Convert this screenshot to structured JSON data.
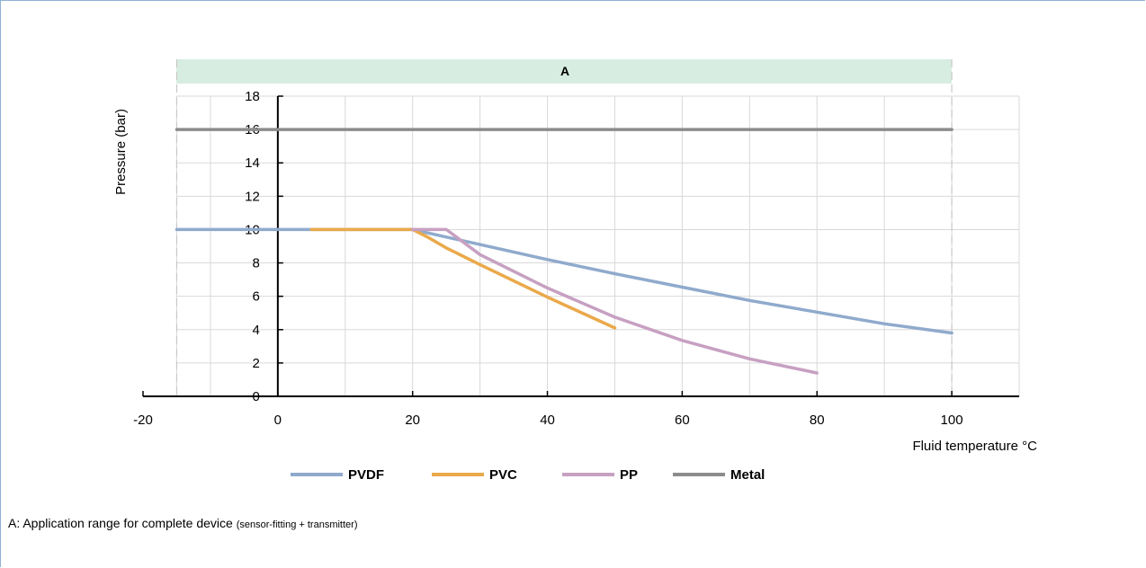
{
  "chart_data": {
    "type": "line",
    "band_label": "A",
    "xlabel": "Fluid temperature °C",
    "ylabel": "Pressure (bar)",
    "xlim": [
      -20,
      110
    ],
    "ylim": [
      0,
      18
    ],
    "x_ticks": [
      -20,
      0,
      20,
      40,
      60,
      80,
      100
    ],
    "y_ticks": [
      0,
      2,
      4,
      6,
      8,
      10,
      12,
      14,
      16,
      18
    ],
    "x_gridlines": [
      -15,
      -10,
      0,
      10,
      20,
      30,
      40,
      50,
      60,
      70,
      80,
      90,
      100,
      110
    ],
    "band_range": [
      -15,
      100
    ],
    "grid": true,
    "legend_position": "bottom",
    "series": [
      {
        "name": "PVDF",
        "color": "#8faacc",
        "points": [
          [
            -15,
            10
          ],
          [
            20,
            10
          ],
          [
            30,
            9.1
          ],
          [
            40,
            8.2
          ],
          [
            50,
            7.35
          ],
          [
            60,
            6.55
          ],
          [
            70,
            5.75
          ],
          [
            80,
            5.05
          ],
          [
            90,
            4.35
          ],
          [
            100,
            3.8
          ]
        ]
      },
      {
        "name": "PVC",
        "color": "#eaa94a",
        "points": [
          [
            5,
            10
          ],
          [
            20,
            10
          ],
          [
            22,
            9.6
          ],
          [
            25,
            8.9
          ],
          [
            30,
            7.9
          ],
          [
            40,
            5.95
          ],
          [
            50,
            4.1
          ]
        ]
      },
      {
        "name": "PP",
        "color": "#c7a0c2",
        "points": [
          [
            20,
            10
          ],
          [
            25,
            10
          ],
          [
            30,
            8.5
          ],
          [
            40,
            6.5
          ],
          [
            50,
            4.75
          ],
          [
            60,
            3.35
          ],
          [
            70,
            2.25
          ],
          [
            80,
            1.4
          ]
        ]
      },
      {
        "name": "Metal",
        "color": "#8c8c8c",
        "points": [
          [
            -15,
            16
          ],
          [
            100,
            16
          ]
        ]
      }
    ]
  },
  "footnote": {
    "main": "A: Application range for complete device ",
    "small": "(sensor-fitting + transmitter)"
  }
}
